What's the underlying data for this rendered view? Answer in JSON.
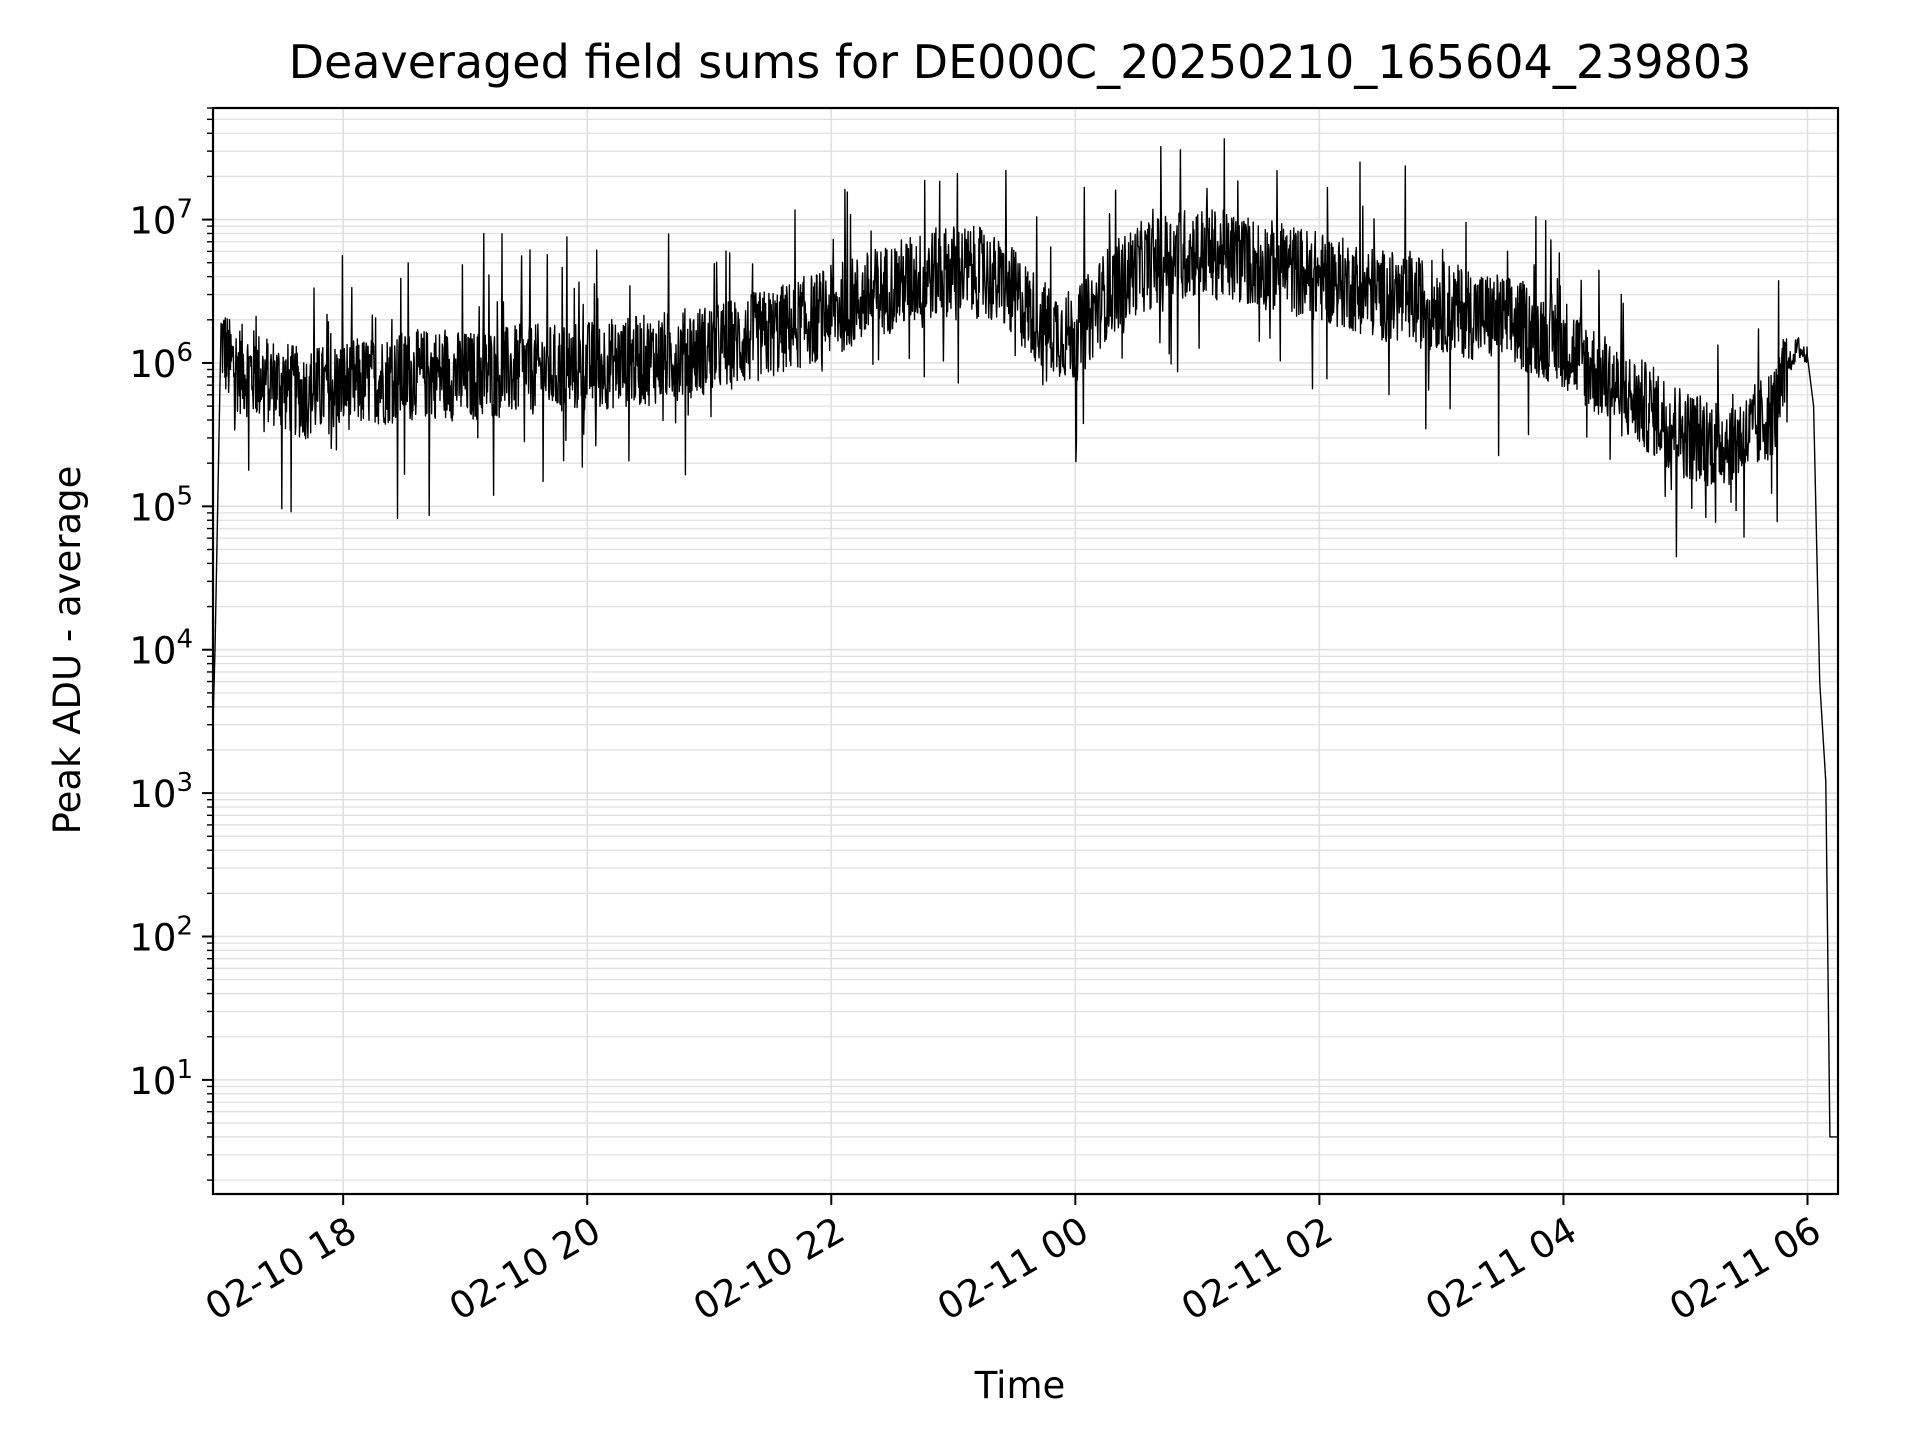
{
  "chart_data": {
    "type": "line",
    "title": "Deaveraged field sums for DE000C_20250210_165604_239803",
    "xlabel": "Time",
    "ylabel": "Peak ADU - average",
    "yscale": "log",
    "grid": true,
    "line_color": "#000000",
    "grid_color": "#e0e0e0",
    "xlim": [
      "2025-02-10 16:56",
      "2025-02-11 06:15"
    ],
    "ylim": [
      1.6,
      60000000
    ],
    "x_ticks": [
      {
        "at": "2025-02-10 18:00",
        "label": "02-10 18"
      },
      {
        "at": "2025-02-10 20:00",
        "label": "02-10 20"
      },
      {
        "at": "2025-02-10 22:00",
        "label": "02-10 22"
      },
      {
        "at": "2025-02-11 00:00",
        "label": "02-11 00"
      },
      {
        "at": "2025-02-11 02:00",
        "label": "02-11 02"
      },
      {
        "at": "2025-02-11 04:00",
        "label": "02-11 04"
      },
      {
        "at": "2025-02-11 06:00",
        "label": "02-11 06"
      }
    ],
    "y_ticks": [
      {
        "value": 10,
        "base": "10",
        "exp": "1"
      },
      {
        "value": 100,
        "base": "10",
        "exp": "2"
      },
      {
        "value": 1000,
        "base": "10",
        "exp": "3"
      },
      {
        "value": 10000,
        "base": "10",
        "exp": "4"
      },
      {
        "value": 100000,
        "base": "10",
        "exp": "5"
      },
      {
        "value": 1000000,
        "base": "10",
        "exp": "6"
      },
      {
        "value": 10000000,
        "base": "10",
        "exp": "7"
      }
    ],
    "series": [
      {
        "x": [
          "2025-02-10 16:56",
          "2025-02-10 16:57",
          "2025-02-10 16:58",
          "2025-02-10 17:00",
          "2025-02-10 17:02",
          "2025-02-10 17:04",
          "2025-02-10 17:10",
          "2025-02-10 17:20",
          "2025-02-10 17:30",
          "2025-02-10 17:40",
          "2025-02-10 17:50",
          "2025-02-10 18:00",
          "2025-02-10 18:15",
          "2025-02-10 18:30",
          "2025-02-10 18:45",
          "2025-02-10 19:00",
          "2025-02-10 19:15",
          "2025-02-10 19:30",
          "2025-02-10 19:45",
          "2025-02-10 20:00",
          "2025-02-10 20:15",
          "2025-02-10 20:30",
          "2025-02-10 20:45",
          "2025-02-10 21:00",
          "2025-02-10 21:15",
          "2025-02-10 21:30",
          "2025-02-10 21:45",
          "2025-02-10 22:00",
          "2025-02-10 22:15",
          "2025-02-10 22:30",
          "2025-02-10 22:45",
          "2025-02-10 23:00",
          "2025-02-10 23:15",
          "2025-02-10 23:30",
          "2025-02-10 23:45",
          "2025-02-11 00:00",
          "2025-02-11 00:15",
          "2025-02-11 00:30",
          "2025-02-11 00:45",
          "2025-02-11 01:00",
          "2025-02-11 01:15",
          "2025-02-11 01:30",
          "2025-02-11 01:45",
          "2025-02-11 02:00",
          "2025-02-11 02:15",
          "2025-02-11 02:30",
          "2025-02-11 02:45",
          "2025-02-11 03:00",
          "2025-02-11 03:15",
          "2025-02-11 03:30",
          "2025-02-11 03:45",
          "2025-02-11 04:00",
          "2025-02-11 04:15",
          "2025-02-11 04:30",
          "2025-02-11 04:45",
          "2025-02-11 05:00",
          "2025-02-11 05:15",
          "2025-02-11 05:30",
          "2025-02-11 05:45",
          "2025-02-11 05:50",
          "2025-02-11 05:55",
          "2025-02-11 06:00",
          "2025-02-11 06:03",
          "2025-02-11 06:06",
          "2025-02-11 06:09",
          "2025-02-11 06:11",
          "2025-02-11 06:13",
          "2025-02-11 06:15"
        ],
        "y": [
          3000,
          10000,
          60000,
          1500000,
          1200000,
          1000000,
          900000,
          800000,
          700000,
          600000,
          650000,
          700000,
          750000,
          800000,
          850000,
          800000,
          850000,
          900000,
          900000,
          950000,
          1000000,
          1050000,
          1150000,
          1250000,
          1400000,
          1600000,
          1900000,
          2300000,
          2800000,
          3400000,
          4000000,
          4500000,
          4200000,
          3000000,
          1800000,
          1500000,
          3000000,
          4500000,
          5500000,
          6000000,
          5500000,
          5000000,
          4500000,
          4000000,
          3500000,
          3000000,
          2700000,
          2500000,
          2200000,
          2000000,
          1700000,
          1400000,
          900000,
          600000,
          450000,
          320000,
          280000,
          300000,
          500000,
          900000,
          1300000,
          1100000,
          500000,
          6000,
          1200,
          4,
          4,
          4
        ]
      }
    ]
  }
}
